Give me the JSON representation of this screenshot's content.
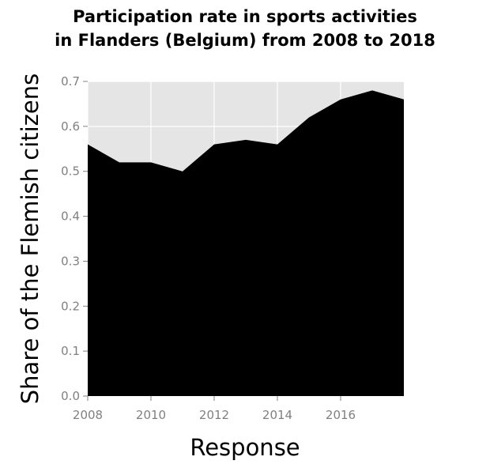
{
  "chart_data": {
    "type": "area",
    "title_lines": [
      "Participation rate in sports activities",
      "in Flanders (Belgium) from 2008 to 2018"
    ],
    "xlabel": "Response",
    "ylabel": "Share of the Flemish citizens",
    "x": [
      2008,
      2009,
      2010,
      2011,
      2012,
      2013,
      2014,
      2015,
      2016,
      2017,
      2018
    ],
    "values": [
      0.56,
      0.52,
      0.52,
      0.5,
      0.56,
      0.57,
      0.56,
      0.62,
      0.66,
      0.68,
      0.66
    ],
    "xlim": [
      2008,
      2018
    ],
    "ylim": [
      0,
      0.7
    ],
    "x_ticks": [
      2008,
      2010,
      2012,
      2014,
      2016
    ],
    "x_tick_labels": [
      "2008",
      "2010",
      "2012",
      "2014",
      "2016"
    ],
    "y_ticks": [
      0,
      0.1,
      0.2,
      0.3,
      0.4,
      0.5,
      0.6,
      0.7
    ],
    "y_tick_labels": [
      "0.0",
      "0.1",
      "0.2",
      "0.3",
      "0.4",
      "0.5",
      "0.6",
      "0.7"
    ],
    "grid": true,
    "legend": "none",
    "colors": {
      "fill": "#000000",
      "panel": "#e5e5e5",
      "grid": "#ffffff",
      "tick_text": "#808080",
      "tick_line": "#808080"
    }
  }
}
